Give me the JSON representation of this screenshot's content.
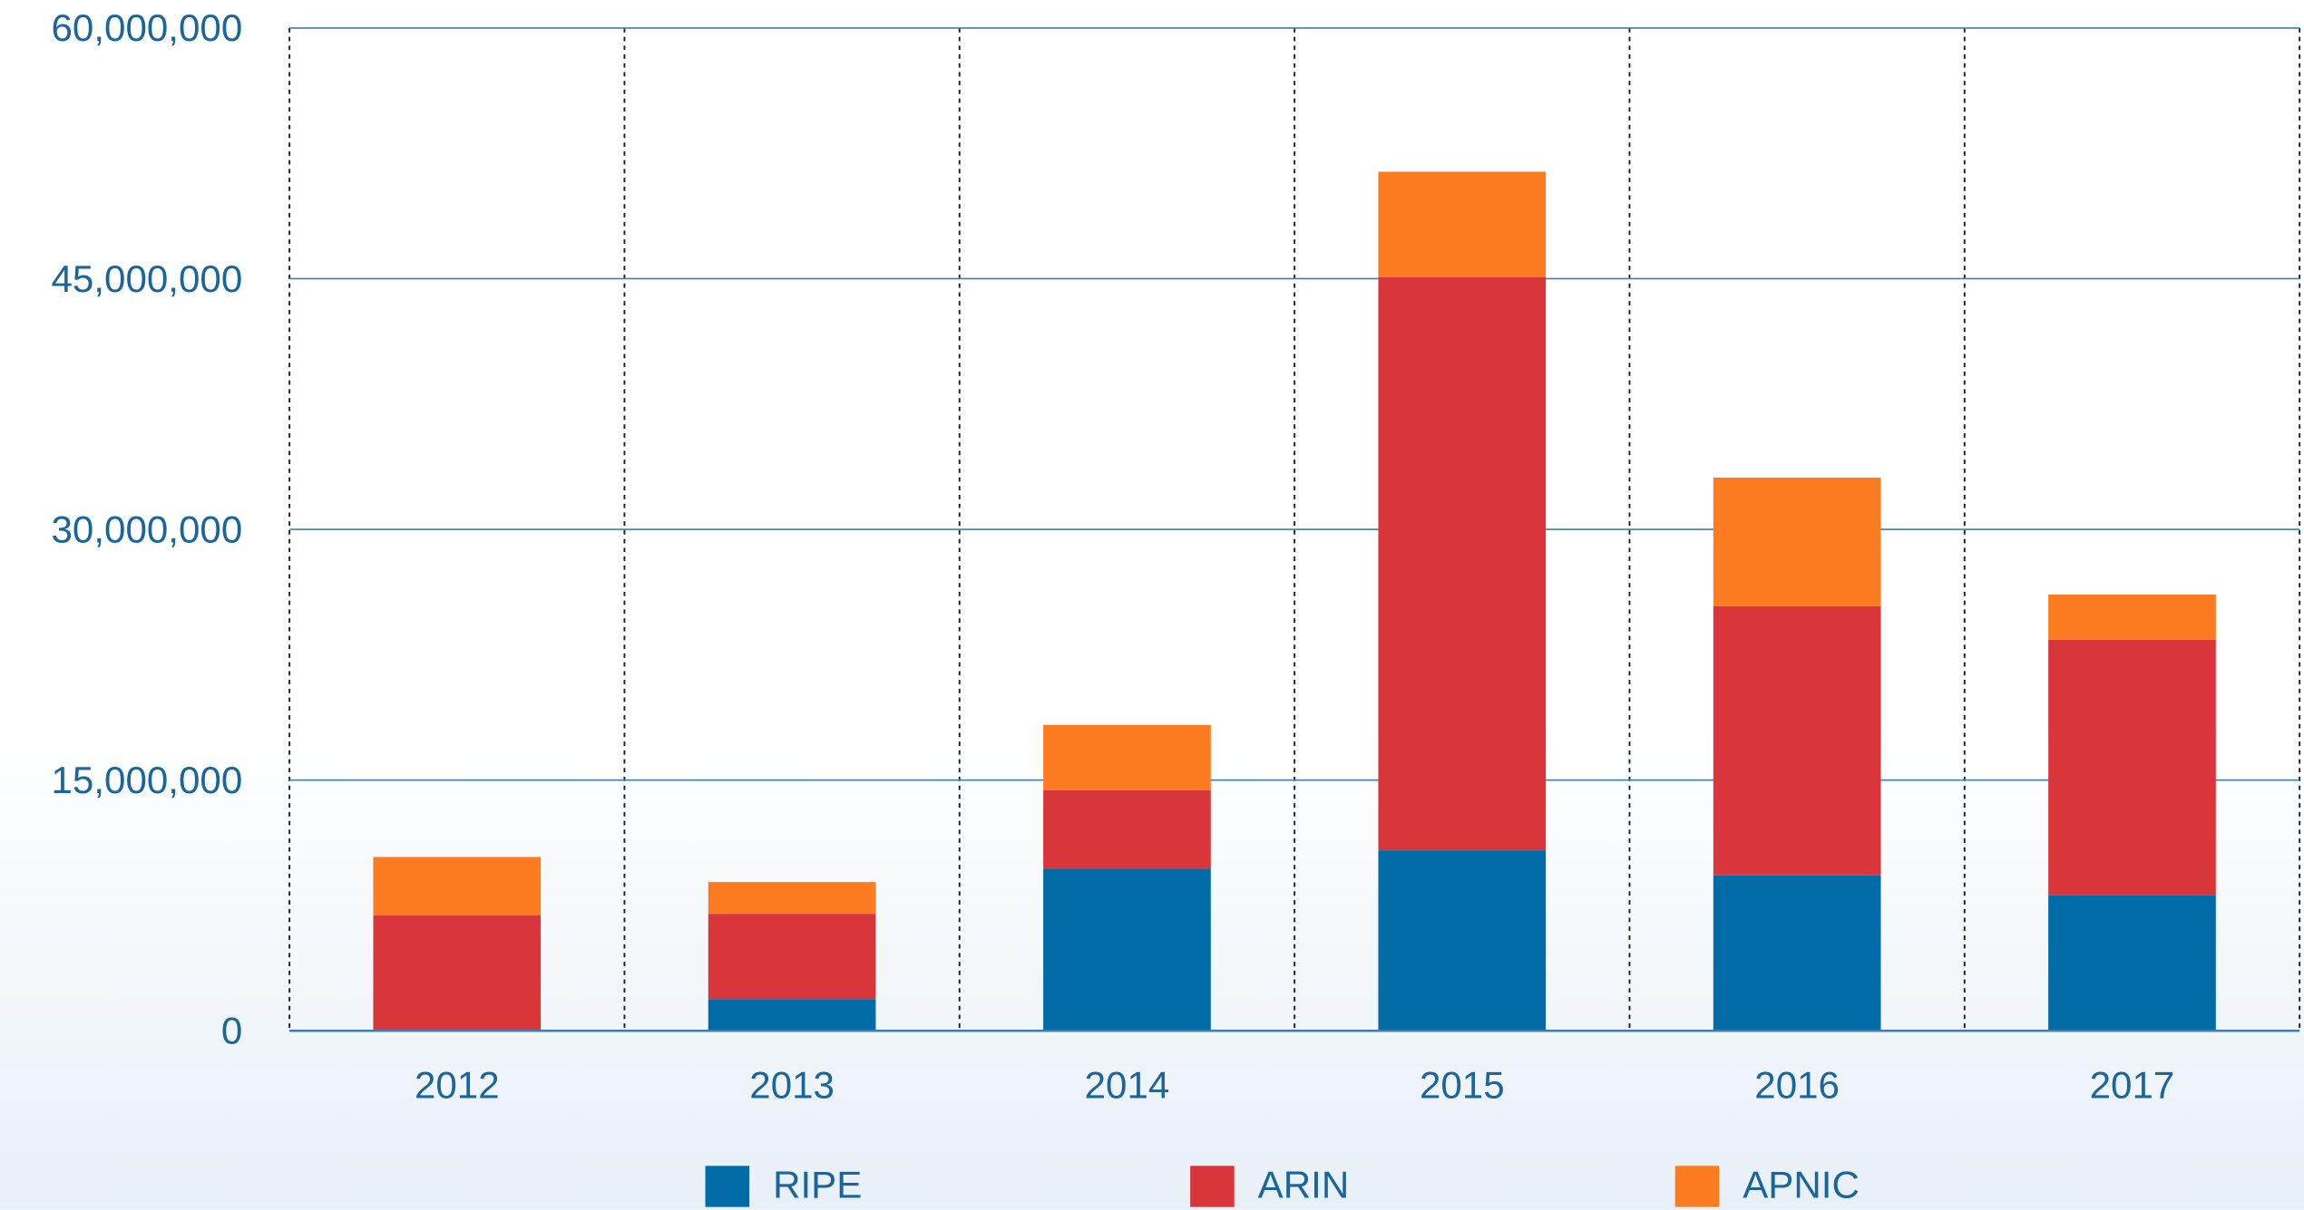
{
  "chart_data": {
    "type": "bar",
    "stacked": true,
    "categories": [
      "2012",
      "2013",
      "2014",
      "2015",
      "2016",
      "2017"
    ],
    "series": [
      {
        "name": "RIPE",
        "color": "#006ba6",
        "values": [
          0,
          1900000,
          9700000,
          10800000,
          9300000,
          8100000
        ]
      },
      {
        "name": "ARIN",
        "color": "#d9363b",
        "values": [
          6900000,
          5100000,
          4700000,
          34300000,
          16100000,
          15300000
        ]
      },
      {
        "name": "APNIC",
        "color": "#fd7c22",
        "values": [
          3500000,
          1900000,
          3900000,
          6300000,
          7700000,
          2700000
        ]
      }
    ],
    "ylim": [
      0,
      60000000
    ],
    "yticks": [
      0,
      {
        "value": 15000000,
        "label": "15,000,000"
      },
      {
        "value": 30000000,
        "label": "30,000,000"
      },
      {
        "value": 45000000,
        "label": "45,000,000"
      },
      {
        "value": 60000000,
        "label": "60,000,000"
      }
    ],
    "grid": true,
    "legend": "bottom"
  }
}
